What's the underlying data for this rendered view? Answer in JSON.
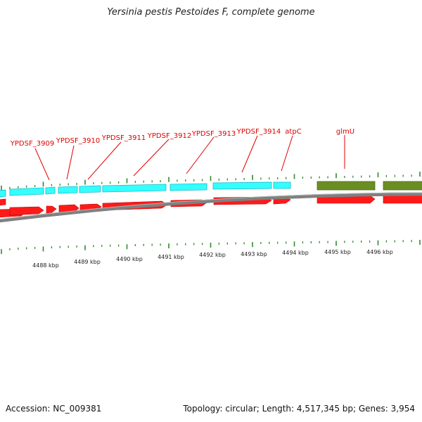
{
  "title": "Yersinia pestis Pestoides F, complete genome",
  "footer": {
    "accession": "Accession: NC_009381",
    "summary": "Topology: circular; Length: 4,517,345 bp; Genes: 3,954"
  },
  "gene_labels": [
    "YPDSF_3909",
    "YPDSF_3910",
    "YPDSF_3911",
    "YPDSF_3912",
    "YPDSF_3913",
    "YPDSF_3914",
    "atpC",
    "glmU"
  ],
  "axis_labels": [
    "4488 kbp",
    "4489 kbp",
    "4490 kbp",
    "4491 kbp",
    "4492 kbp",
    "4493 kbp",
    "4494 kbp",
    "4495 kbp",
    "4496 kbp"
  ],
  "colors": {
    "cds": "#ff1a1a",
    "gene_cyan": "#33ffff",
    "gene_olive": "#6b8e23",
    "ticks": "#2e8b2e",
    "backbone": "#808080",
    "label": "#e00000"
  }
}
